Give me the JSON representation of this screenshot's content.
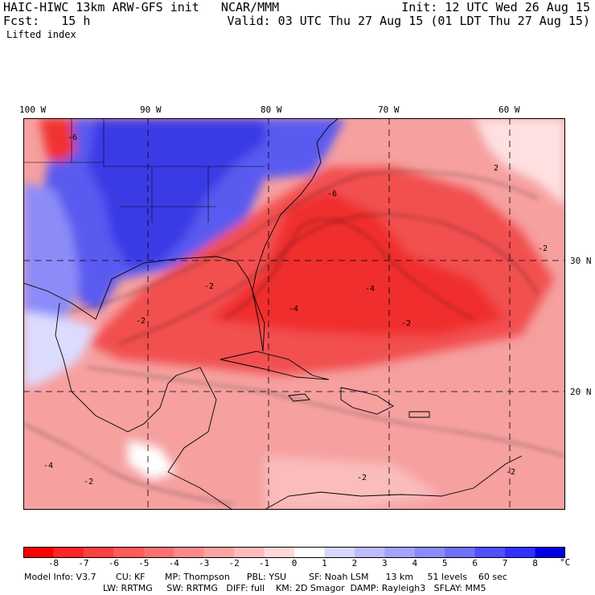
{
  "header": {
    "title": "HAIC-HIWC 13km ARW-GFS init   NCAR/MMM",
    "init": "Init: 12 UTC Wed 26 Aug 15",
    "fcst": "Fcst:   15 h",
    "valid": "Valid: 03 UTC Thu 27 Aug 15 (01 LDT Thu 27 Aug 15)",
    "field": "Lifted index"
  },
  "map": {
    "lon_labels": [
      "100 W",
      "90 W",
      "80 W",
      "70 W",
      "60 W"
    ],
    "lat_labels": [
      "30 N",
      "20 N"
    ],
    "contour_labels": [
      "-6",
      "-4",
      "-2",
      "2",
      "-6",
      "-4",
      "-2",
      "-2",
      "-2",
      "-4",
      "-2",
      "-2",
      "-2"
    ],
    "colors": {
      "negative_strong": "#ff2020",
      "negative_mid": "#f27070",
      "negative_weak": "#ffc8c8",
      "neutral": "#ffffff",
      "positive_weak": "#c8c8ff",
      "positive_mid": "#7070ff",
      "positive_strong": "#2020e6"
    }
  },
  "colorbar": {
    "ticks": [
      "-8",
      "-7",
      "-6",
      "-5",
      "-4",
      "-3",
      "-2",
      "-1",
      "0",
      "1",
      "2",
      "3",
      "4",
      "5",
      "6",
      "7",
      "8"
    ],
    "unit": "°C",
    "colors": [
      "#ff0000",
      "#ff2525",
      "#ff4040",
      "#ff5a5a",
      "#ff7070",
      "#ff8a8a",
      "#ffa3a3",
      "#ffbcbc",
      "#ffd8d8",
      "#ffffff",
      "#d8d8ff",
      "#bcbcff",
      "#a3a3ff",
      "#8a8aff",
      "#7070ff",
      "#5050ff",
      "#3030ff",
      "#0000e6"
    ]
  },
  "model_info": {
    "line1": "Model Info: V3.7       CU: KF       MP: Thompson      PBL: YSU        SF: Noah LSM      13 km     51 levels    60 sec",
    "line2": "LW: RRTMG     SW: RRTMG   DIFF: full    KM: 2D Smagor  DAMP: Rayleigh3   SFLAY: MM5"
  }
}
